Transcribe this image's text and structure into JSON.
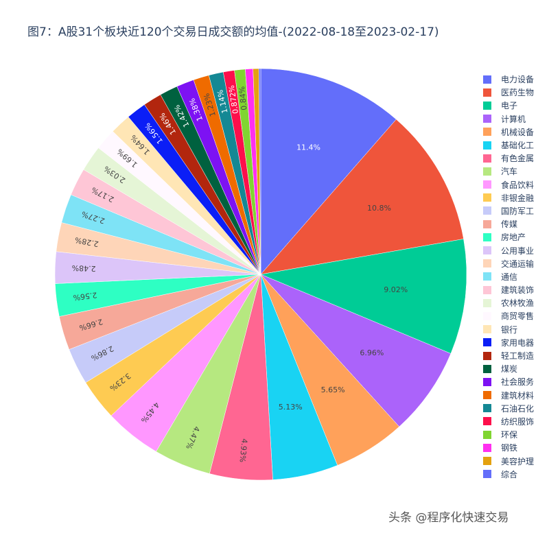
{
  "chart_data": {
    "type": "pie",
    "title": "图7：A股31个板块近120个交易日成交额的均值-(2022-08-18至2023-02-17)",
    "legend_position": "right",
    "slices": [
      {
        "label": "电力设备",
        "value": 11.4,
        "text": "11.4%",
        "color": "#636efa"
      },
      {
        "label": "医药生物",
        "value": 10.8,
        "text": "10.8%",
        "color": "#ef553b"
      },
      {
        "label": "电子",
        "value": 9.02,
        "text": "9.02%",
        "color": "#00cc96"
      },
      {
        "label": "计算机",
        "value": 6.96,
        "text": "6.96%",
        "color": "#ab63fa"
      },
      {
        "label": "机械设备",
        "value": 5.65,
        "text": "5.65%",
        "color": "#ffa15a"
      },
      {
        "label": "基础化工",
        "value": 5.13,
        "text": "5.13%",
        "color": "#19d3f3"
      },
      {
        "label": "有色金属",
        "value": 4.93,
        "text": "4.93%",
        "color": "#ff6692"
      },
      {
        "label": "汽车",
        "value": 4.47,
        "text": "4.47%",
        "color": "#b6e880"
      },
      {
        "label": "食品饮料",
        "value": 4.45,
        "text": "4.45%",
        "color": "#ff97ff"
      },
      {
        "label": "非银金融",
        "value": 3.23,
        "text": "3.23%",
        "color": "#fecb52"
      },
      {
        "label": "国防军工",
        "value": 2.86,
        "text": "2.86%",
        "color": "#c6cbf9"
      },
      {
        "label": "传媒",
        "value": 2.66,
        "text": "2.66%",
        "color": "#f6a899"
      },
      {
        "label": "房地产",
        "value": 2.56,
        "text": "2.56%",
        "color": "#2effc3"
      },
      {
        "label": "公用事业",
        "value": 2.48,
        "text": "2.48%",
        "color": "#dcc5f9"
      },
      {
        "label": "交通运输",
        "value": 2.28,
        "text": "2.28%",
        "color": "#fed5b8"
      },
      {
        "label": "通信",
        "value": 2.27,
        "text": "2.27%",
        "color": "#7ee3f6"
      },
      {
        "label": "建筑装饰",
        "value": 2.17,
        "text": "2.17%",
        "color": "#fec6d6"
      },
      {
        "label": "农林牧渔",
        "value": 2.03,
        "text": "2.03%",
        "color": "#e5f5d6"
      },
      {
        "label": "商贸零售",
        "value": 1.69,
        "text": "1.69%",
        "color": "#fff8ff"
      },
      {
        "label": "银行",
        "value": 1.64,
        "text": "1.64%",
        "color": "#ffe6b5"
      },
      {
        "label": "家用电器",
        "value": 1.56,
        "text": "1.56%",
        "color": "#0b1ef6"
      },
      {
        "label": "轻工制造",
        "value": 1.46,
        "text": "1.46%",
        "color": "#b2260e"
      },
      {
        "label": "煤炭",
        "value": 1.42,
        "text": "1.42%",
        "color": "#00613f"
      },
      {
        "label": "社会服务",
        "value": 1.38,
        "text": "1.38%",
        "color": "#7d12f3"
      },
      {
        "label": "建筑材料",
        "value": 1.23,
        "text": "1.23%",
        "color": "#ef6b00"
      },
      {
        "label": "石油石化",
        "value": 1.14,
        "text": "1.14%",
        "color": "#148894"
      },
      {
        "label": "纺织服饰",
        "value": 0.872,
        "text": "0.872%",
        "color": "#fd0f4b"
      },
      {
        "label": "环保",
        "value": 0.84,
        "text": "0.84%",
        "color": "#80d531"
      },
      {
        "label": "钢铁",
        "value": 0.6,
        "text": "",
        "color": "#ff2ff0"
      },
      {
        "label": "美容护理",
        "value": 0.45,
        "text": "",
        "color": "#e4a10f"
      },
      {
        "label": "综合",
        "value": 0.15,
        "text": "",
        "color": "#636efa"
      }
    ]
  },
  "watermark": "头条 @程序化快速交易"
}
